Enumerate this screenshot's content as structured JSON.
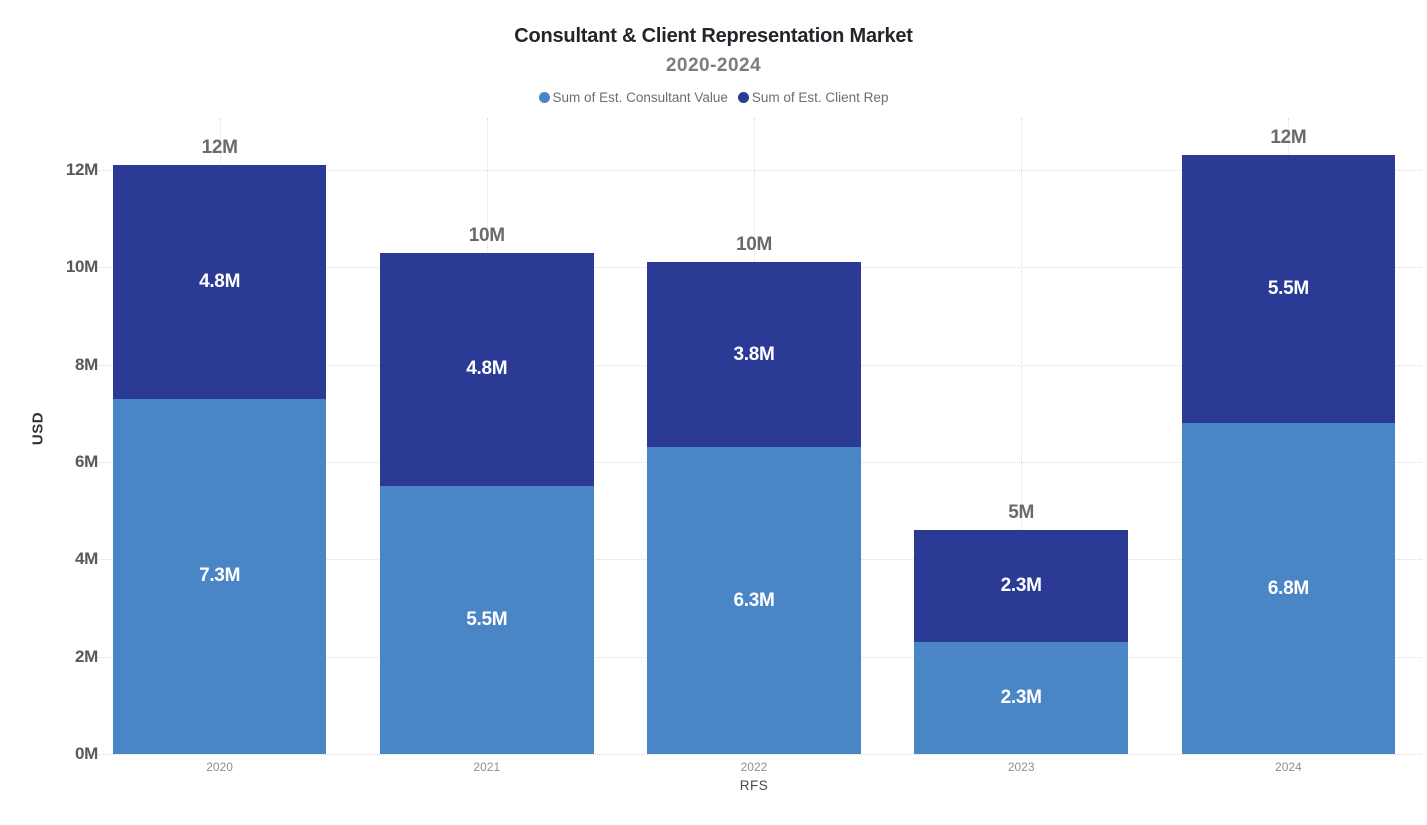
{
  "chart": {
    "title": "Consultant & Client Representation Market",
    "subtitle": "2020-2024",
    "ylabel": "USD",
    "xlabel": "RFS",
    "legend": [
      {
        "label": "Sum of Est. Consultant Value",
        "color": "#4A85C6"
      },
      {
        "label": "Sum of Est. Client Rep",
        "color": "#2B3A94"
      }
    ]
  },
  "chart_data": {
    "type": "bar",
    "stacked": true,
    "title": "Consultant & Client Representation Market",
    "subtitle": "2020-2024",
    "xlabel": "RFS",
    "ylabel": "USD",
    "categories": [
      "2020",
      "2021",
      "2022",
      "2023",
      "2024"
    ],
    "series": [
      {
        "name": "Sum of Est. Consultant Value",
        "color": "#4A85C6",
        "values": [
          7.3,
          5.5,
          6.3,
          2.3,
          6.8
        ],
        "labels": [
          "7.3M",
          "5.5M",
          "6.3M",
          "2.3M",
          "6.8M"
        ]
      },
      {
        "name": "Sum of Est. Client Rep",
        "color": "#2B3A94",
        "values": [
          4.8,
          4.8,
          3.8,
          2.3,
          5.5
        ],
        "labels": [
          "4.8M",
          "4.8M",
          "3.8M",
          "2.3M",
          "5.5M"
        ]
      }
    ],
    "totals": [
      12.1,
      10.3,
      10.1,
      4.6,
      12.3
    ],
    "total_labels": [
      "12M",
      "10M",
      "10M",
      "5M",
      "12M"
    ],
    "y_tick_values": [
      0,
      2,
      4,
      6,
      8,
      10,
      12
    ],
    "y_tick_labels": [
      "0M",
      "2M",
      "4M",
      "6M",
      "8M",
      "10M",
      "12M"
    ],
    "ylim": [
      0,
      13
    ],
    "grid": "dotted",
    "legend_position": "top",
    "colors": {
      "grid": "#DCDCDC",
      "total_label": "#6A6A6A",
      "segment_label": "#ffffff"
    }
  }
}
